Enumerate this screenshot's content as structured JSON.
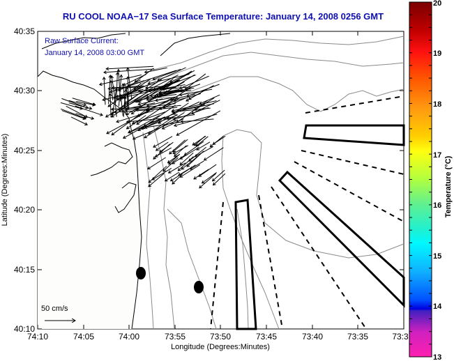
{
  "title": "RU COOL  NOAA−17  Sea Surface Temperature:  January 14, 2008 0256 GMT",
  "annotation": {
    "line1": "Raw Surface Current:",
    "line2": "January 14, 2008 03:00 GMT"
  },
  "scale_arrow": {
    "label": "50 cm/s"
  },
  "axes": {
    "xlabel": "Longitude (Degrees:Minutes)",
    "ylabel": "Latitude (Degrees:Minutes)",
    "xticks": [
      "74:10",
      "74:05",
      "74:00",
      "73:55",
      "73:50",
      "73:45",
      "73:40",
      "73:35",
      "73:3"
    ],
    "yticks": [
      "40:35",
      "40:30",
      "40:25",
      "40:20",
      "40:15",
      "40:10"
    ]
  },
  "colorbar": {
    "label": "Temperature (°C)",
    "min": 13,
    "max": 20,
    "ticks": [
      "20",
      "19",
      "18",
      "17",
      "16",
      "15",
      "14",
      "13"
    ]
  },
  "markers": {
    "count": 2,
    "type": "filled-ellipse"
  },
  "chart_data": {
    "type": "scatter",
    "title": "RU COOL  NOAA−17  Sea Surface Temperature:  January 14, 2008 0256 GMT",
    "xlabel": "Longitude (Degrees:Minutes)",
    "ylabel": "Latitude (Degrees:Minutes)",
    "xlim": [
      "74:10",
      "73:30"
    ],
    "ylim": [
      "40:10",
      "40:35"
    ],
    "colorbar_range": [
      13,
      20
    ],
    "colorbar_label": "Temperature (°C)",
    "legend": "none",
    "grid": false,
    "markers": [
      {
        "lon": "73:58.9",
        "lat": "40:14.6"
      },
      {
        "lon": "73:52.3",
        "lat": "40:13.5"
      }
    ]
  }
}
